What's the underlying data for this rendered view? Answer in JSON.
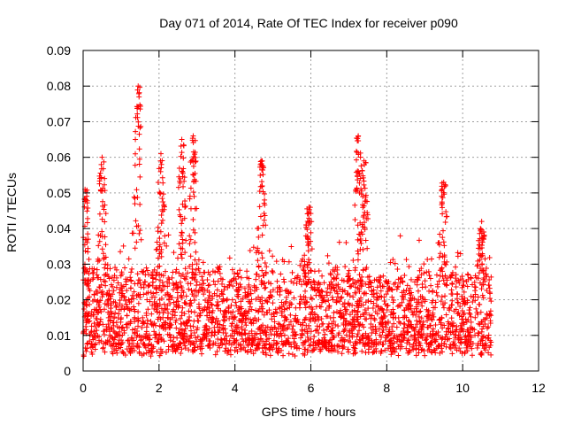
{
  "chart_data": {
    "type": "scatter",
    "title": "Day 071 of 2014, Rate Of TEC Index for receiver p090",
    "xlabel": "GPS time / hours",
    "ylabel": "ROTI / TECUs",
    "xlim": [
      0,
      12
    ],
    "ylim": [
      0,
      0.09
    ],
    "x_ticks": [
      "0",
      "2",
      "4",
      "6",
      "8",
      "10",
      "12"
    ],
    "y_ticks": [
      "0",
      "0.01",
      "0.02",
      "0.03",
      "0.04",
      "0.05",
      "0.06",
      "0.07",
      "0.08",
      "0.09"
    ],
    "grid": true,
    "marker": "+",
    "series": [
      {
        "name": "ROTI",
        "color": "#ff0000",
        "x_range": [
          0,
          10.75
        ],
        "typical_range": [
          0.005,
          0.03
        ],
        "peaks": [
          {
            "x": 0.05,
            "y": 0.051
          },
          {
            "x": 0.5,
            "y": 0.06
          },
          {
            "x": 1.45,
            "y": 0.08
          },
          {
            "x": 2.05,
            "y": 0.061
          },
          {
            "x": 2.6,
            "y": 0.065
          },
          {
            "x": 2.9,
            "y": 0.066
          },
          {
            "x": 4.7,
            "y": 0.059
          },
          {
            "x": 5.95,
            "y": 0.046
          },
          {
            "x": 7.25,
            "y": 0.066
          },
          {
            "x": 7.4,
            "y": 0.059
          },
          {
            "x": 9.5,
            "y": 0.053
          },
          {
            "x": 10.5,
            "y": 0.042
          }
        ]
      }
    ]
  }
}
